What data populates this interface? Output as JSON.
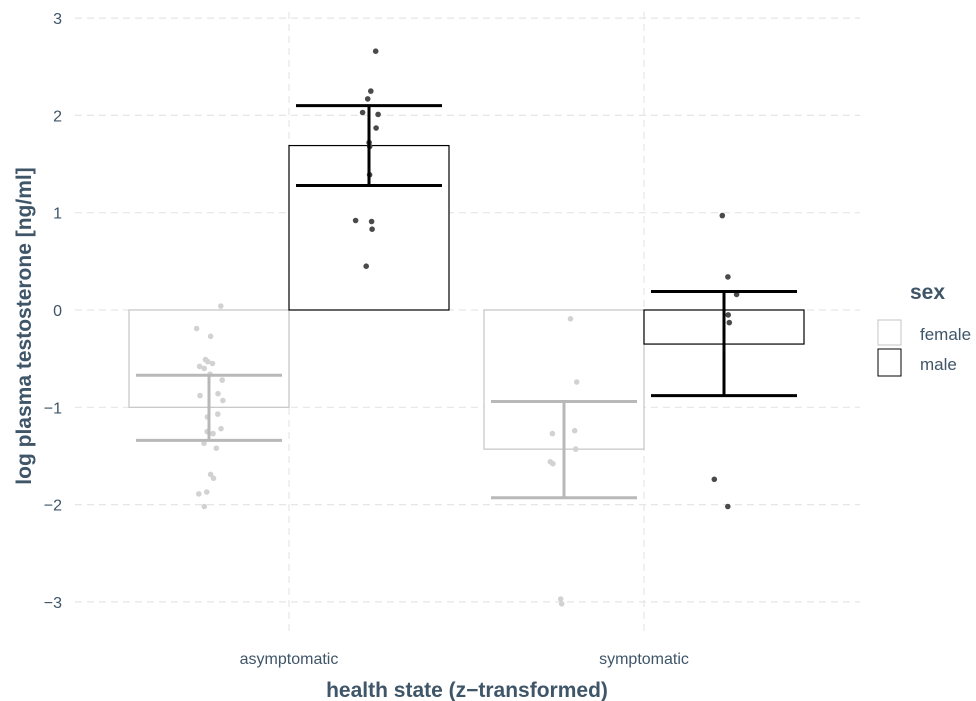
{
  "chart_data": {
    "type": "bar",
    "xlabel": "health state (z−transformed)",
    "ylabel": "log plasma testosterone [ng/ml]",
    "categories": [
      "asymptomatic",
      "symptomatic"
    ],
    "ylim": [
      -3.35,
      3.1
    ],
    "yticks": [
      -3,
      -2,
      -1,
      0,
      1,
      2,
      3
    ],
    "ytick_labels": [
      "−3",
      "−2",
      "−1",
      "0",
      "1",
      "2",
      "3"
    ],
    "grid": true,
    "legend": {
      "title": "sex",
      "position": "right",
      "entries": [
        "female",
        "male"
      ]
    },
    "series": [
      {
        "name": "female",
        "color": "#c4c4c4",
        "means": [
          -1.0,
          -1.43
        ],
        "error_low": [
          -1.34,
          -1.93
        ],
        "error_high": [
          -0.67,
          -0.94
        ],
        "points": [
          [
            0.04,
            -0.19,
            -0.27,
            -0.51,
            -0.53,
            -0.55,
            -0.58,
            -0.6,
            -0.66,
            -0.72,
            -0.86,
            -0.88,
            -0.93,
            -1.07,
            -1.1,
            -1.22,
            -1.25,
            -1.27,
            -1.37,
            -1.42,
            -1.69,
            -1.73,
            -1.87,
            -1.89,
            -2.02
          ],
          [
            -0.09,
            -0.74,
            -1.24,
            -1.27,
            -1.43,
            -1.56,
            -1.58,
            -2.97,
            -3.02
          ]
        ]
      },
      {
        "name": "male",
        "color": "#4a4a4a",
        "means": [
          1.69,
          -0.35
        ],
        "error_low": [
          1.28,
          -0.88
        ],
        "error_high": [
          2.1,
          0.19
        ],
        "points": [
          [
            2.66,
            2.25,
            2.17,
            2.03,
            2.01,
            1.87,
            1.72,
            1.68,
            1.39,
            0.92,
            0.91,
            0.83,
            0.45
          ],
          [
            0.97,
            0.34,
            0.16,
            -0.05,
            -0.13,
            -1.74,
            -2.02
          ]
        ]
      }
    ]
  }
}
